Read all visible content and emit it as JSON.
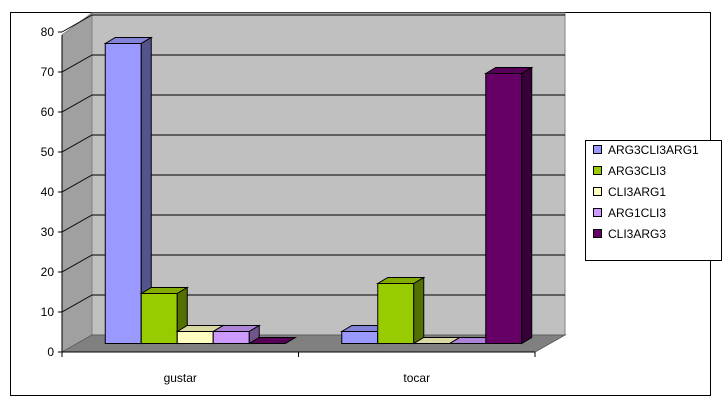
{
  "chart_data": {
    "type": "bar",
    "categories": [
      "gustar",
      "tocar"
    ],
    "series": [
      {
        "name": "ARG3CLI3ARG1",
        "values": [
          75,
          3
        ],
        "color": "#9999ff"
      },
      {
        "name": "ARG3CLI3",
        "values": [
          12.5,
          15
        ],
        "color": "#99cc00"
      },
      {
        "name": "CLI3ARG1",
        "values": [
          3,
          0
        ],
        "color": "#ffffc0"
      },
      {
        "name": "ARG1CLI3",
        "values": [
          3,
          0
        ],
        "color": "#cc99ff"
      },
      {
        "name": "CLI3ARG3",
        "values": [
          0,
          67.5
        ],
        "color": "#660066"
      }
    ],
    "ylim": [
      0,
      80
    ],
    "yticks": [
      "0",
      "10",
      "20",
      "30",
      "40",
      "50",
      "60",
      "70",
      "80"
    ],
    "xlabel": "",
    "ylabel": "",
    "grid": true,
    "legend_position": "right",
    "plot_background": "#c0c0c0"
  }
}
